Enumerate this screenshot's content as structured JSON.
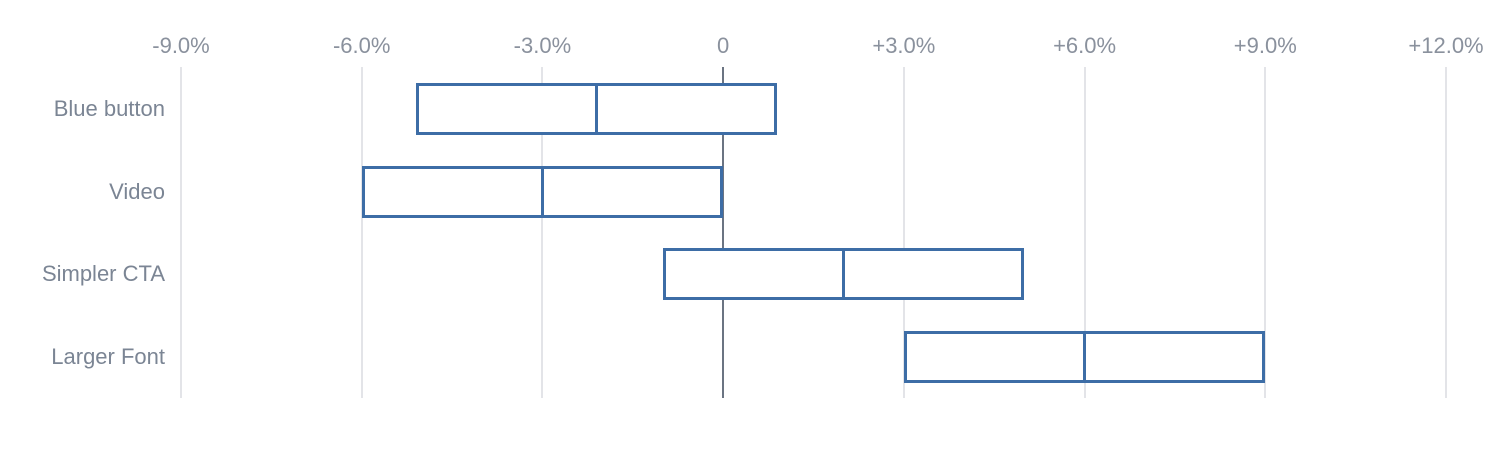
{
  "chart_data": {
    "type": "bar",
    "subtype": "horizontal-range-interval",
    "title": "",
    "xlabel": "",
    "ylabel": "",
    "unit": "%",
    "legend": false,
    "grid": true,
    "categories": [
      "Blue button",
      "Video",
      "Simpler CTA",
      "Larger Font"
    ],
    "series": [
      {
        "name": "Blue button",
        "low": -5.1,
        "mid": -2.1,
        "high": 0.9
      },
      {
        "name": "Video",
        "low": -6.0,
        "mid": -3.0,
        "high": 0.0
      },
      {
        "name": "Simpler CTA",
        "low": -1.0,
        "mid": 2.0,
        "high": 5.0
      },
      {
        "name": "Larger Font",
        "low": 3.0,
        "mid": 6.0,
        "high": 9.0
      }
    ],
    "x_axis": {
      "min": -9,
      "max": 12,
      "tick_step": 3,
      "ticks": [
        {
          "value": -9,
          "label": "-9.0%"
        },
        {
          "value": -6,
          "label": "-6.0%"
        },
        {
          "value": -3,
          "label": "-3.0%"
        },
        {
          "value": 0,
          "label": "0"
        },
        {
          "value": 3,
          "label": "+3.0%"
        },
        {
          "value": 6,
          "label": "+6.0%"
        },
        {
          "value": 9,
          "label": "+9.0%"
        },
        {
          "value": 12,
          "label": "+12.0%"
        }
      ]
    },
    "colors": {
      "bar_border": "#3D6DA6",
      "bar_fill": "#FFFFFF",
      "zero_line": "#6B7482",
      "grid_line": "#E3E4E8",
      "tick_label": "#8A919D",
      "category_label": "#7B8594",
      "background": "#FFFFFF"
    }
  }
}
